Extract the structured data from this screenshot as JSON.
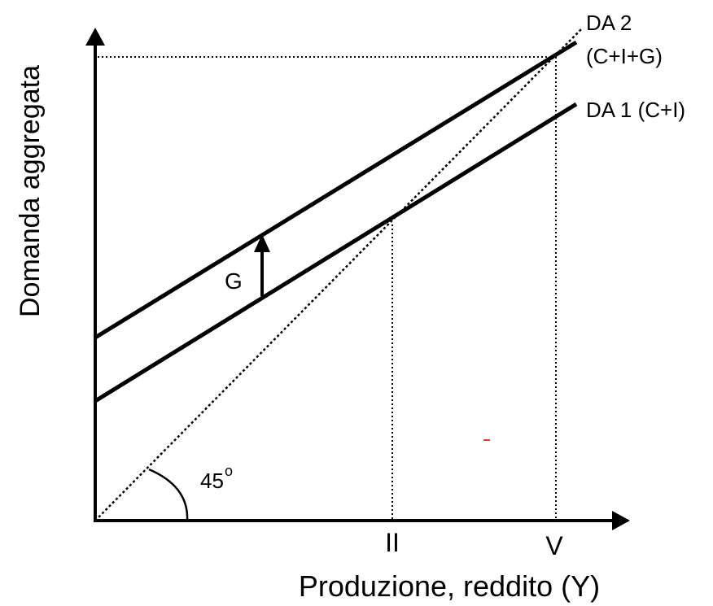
{
  "axes": {
    "y_label": "Domanda aggregata",
    "x_label": "Produzione, reddito (Y)"
  },
  "curves": {
    "da2_name": "DA 2",
    "da2_formula": "(C+I+G)",
    "da1": "DA 1 (C+I)"
  },
  "shift_label": "G",
  "angle": {
    "degrees": "45",
    "symbol": "o"
  },
  "x_marks": {
    "equilibrium_1": "II",
    "equilibrium_2": "V"
  }
}
